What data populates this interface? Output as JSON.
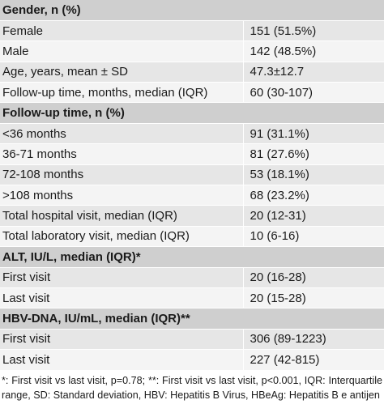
{
  "table": {
    "sections": [
      {
        "title": "Gender, n (%)",
        "rows": [
          [
            "Female",
            "151 (51.5%)"
          ],
          [
            "Male",
            "142 (48.5%)"
          ],
          [
            "Age, years, mean ± SD",
            "47.3±12.7"
          ],
          [
            "Follow-up time, months, median (IQR)",
            "60 (30-107)"
          ]
        ]
      },
      {
        "title": "Follow-up time, n (%)",
        "rows": [
          [
            "<36 months",
            "91 (31.1%)"
          ],
          [
            "36-71 months",
            "81 (27.6%)"
          ],
          [
            "72-108 months",
            "53 (18.1%)"
          ],
          [
            ">108 months",
            "68 (23.2%)"
          ],
          [
            "Total hospital visit, median (IQR)",
            "20 (12-31)"
          ],
          [
            "Total laboratory visit, median (IQR)",
            "10 (6-16)"
          ]
        ]
      },
      {
        "title": "ALT, IU/L, median (IQR)*",
        "rows": [
          [
            "First visit",
            "20 (16-28)"
          ],
          [
            "Last visit",
            "20 (15-28)"
          ]
        ]
      },
      {
        "title": "HBV-DNA, IU/mL, median (IQR)**",
        "rows": [
          [
            "First visit",
            "306 (89-1223)"
          ],
          [
            "Last visit",
            "227 (42-815)"
          ]
        ]
      }
    ],
    "footnote": "*: First visit vs last visit, p=0.78; **: First visit vs last visit, p<0.001, IQR: Interquartile range, SD: Standard deviation, HBV: Hepatitis B Virus, HBeAg: Hepatitis B e antijen"
  }
}
